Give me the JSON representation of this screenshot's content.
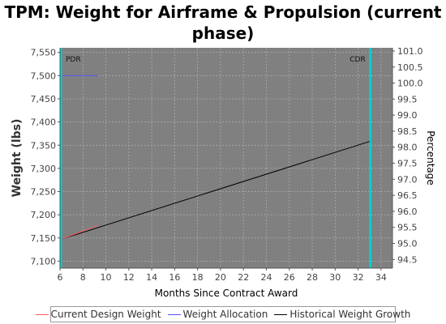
{
  "chart_data": {
    "type": "line",
    "title_line1": "TPM: Weight for Airframe & Propulsion (current",
    "title_line2": "phase)",
    "xlabel": "Months Since Contract Award",
    "ylabel": "Weight (lbs)",
    "y2label": "Percentage",
    "xlim": [
      6,
      35
    ],
    "ylim": [
      7085,
      7560
    ],
    "y2lim": [
      94.23,
      101.1
    ],
    "x_ticks": [
      6,
      8,
      10,
      12,
      14,
      16,
      18,
      20,
      22,
      24,
      26,
      28,
      30,
      32,
      34
    ],
    "y_ticks": [
      7100,
      7150,
      7200,
      7250,
      7300,
      7350,
      7400,
      7450,
      7500,
      7550
    ],
    "y_tick_labels": [
      "7,100",
      "7,150",
      "7,200",
      "7,250",
      "7,300",
      "7,350",
      "7,400",
      "7,450",
      "7,500",
      "7,550"
    ],
    "y2_ticks": [
      94.5,
      95.0,
      95.5,
      96.0,
      96.5,
      97.0,
      97.5,
      98.0,
      98.5,
      99.0,
      99.5,
      100.0,
      100.5,
      101.0
    ],
    "y2_tick_labels": [
      "94.5",
      "95.0",
      "95.5",
      "96.0",
      "96.5",
      "97.0",
      "97.5",
      "98.0",
      "98.5",
      "99.0",
      "99.5",
      "100.0",
      "100.5",
      "101.0"
    ],
    "grid": true,
    "legend_position": "bottom",
    "series": [
      {
        "name": "Current Design Weight",
        "color": "#ff5a5a",
        "x": [
          6.2,
          9.3
        ],
        "y": [
          7148,
          7177
        ]
      },
      {
        "name": "Weight Allocation",
        "color": "#5555ff",
        "x": [
          6.2,
          9.3
        ],
        "y": [
          7500,
          7500
        ]
      },
      {
        "name": "Historical Weight Growth",
        "color": "#000000",
        "x": [
          6.2,
          33.0
        ],
        "y": [
          7148,
          7358
        ]
      }
    ],
    "milestones": [
      {
        "label": "PDR",
        "x": 6.0
      },
      {
        "label": "CDR",
        "x": 33.0
      }
    ]
  },
  "colors": {
    "plot_background": "#808080",
    "milestone_line": "#00d0d0",
    "gridline": "#b0b0b0"
  }
}
